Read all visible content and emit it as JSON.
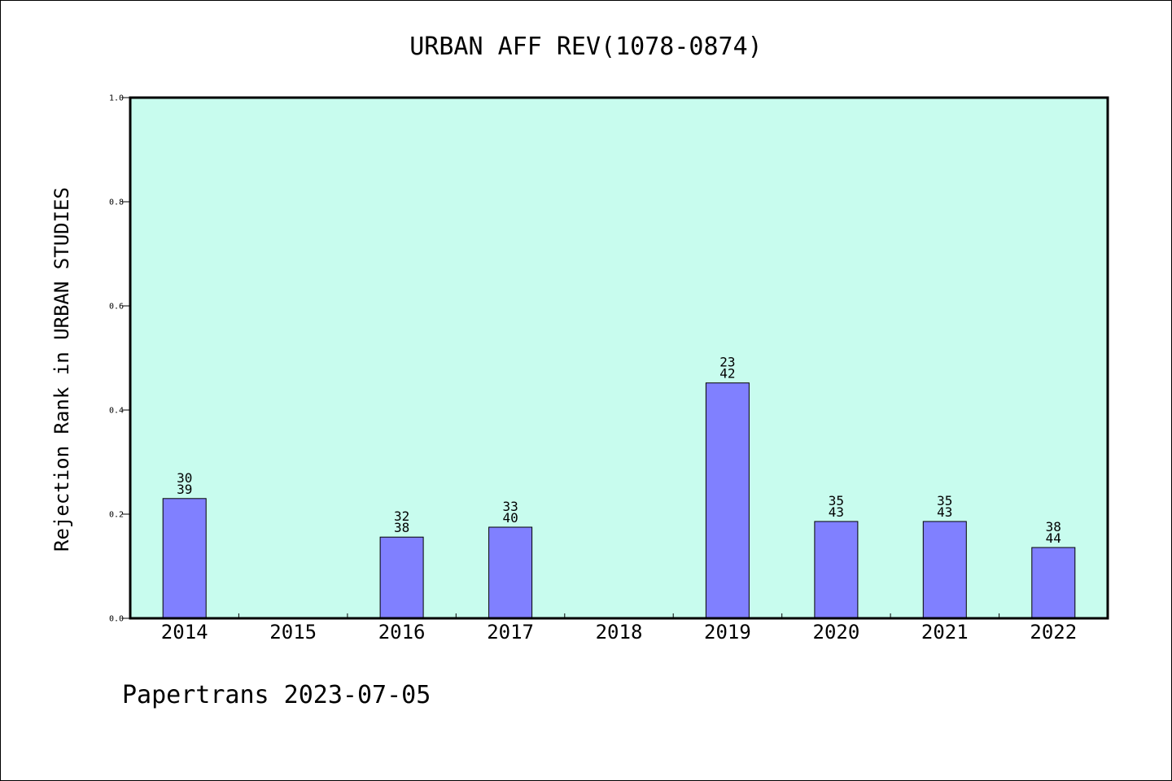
{
  "chart_data": {
    "type": "bar",
    "title": "URBAN AFF REV(1078-0874)",
    "ylabel": "Rejection Rank in URBAN STUDIES",
    "xlabel": "",
    "categories": [
      "2014",
      "2015",
      "2016",
      "2017",
      "2018",
      "2019",
      "2020",
      "2021",
      "2022"
    ],
    "values": [
      0.23,
      null,
      0.156,
      0.175,
      null,
      0.452,
      0.186,
      0.186,
      0.136
    ],
    "bar_labels": [
      [
        "30",
        "39"
      ],
      null,
      [
        "32",
        "38"
      ],
      [
        "33",
        "40"
      ],
      null,
      [
        "23",
        "42"
      ],
      [
        "35",
        "43"
      ],
      [
        "35",
        "43"
      ],
      [
        "38",
        "44"
      ]
    ],
    "ylim": [
      0,
      1.0
    ],
    "yticks": [
      "0.0",
      "0.2",
      "0.4",
      "0.6",
      "0.8",
      "1.0"
    ],
    "grid": false,
    "colors": {
      "plot_background": "#c8fcee",
      "bar_fill": "#8080ff",
      "bar_stroke": "#000000"
    }
  },
  "footer": {
    "text": "Papertrans 2023-07-05"
  }
}
